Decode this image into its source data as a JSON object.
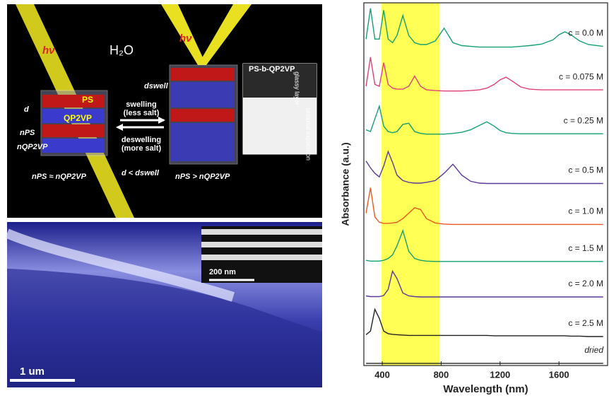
{
  "schematic": {
    "hv_left": "hν",
    "hv_right": "hν",
    "solvent": "H₂O",
    "ps": "PS",
    "qp2vp": "QP2VP",
    "d": "d",
    "n_ps": "nPS",
    "n_qp2vp": "nQP2VP",
    "swelling": "swelling",
    "less_salt": "(less salt)",
    "deswelling": "deswelling",
    "more_salt": "(more salt)",
    "relation_left": "nPS ≈ nQP2VP",
    "relation_mid": "d < dswell",
    "relation_right": "nPS > nQP2VP",
    "d_swell": "dswell",
    "polymer": "PS-b-QP2VP",
    "glassy": "glassy layer",
    "expansion": "uniaxial expansion"
  },
  "micrograph": {
    "inset_scale": "200 nm",
    "scale": "1 um"
  },
  "chart_data": {
    "type": "line",
    "xlabel": "Wavelength (nm)",
    "ylabel": "Absorbance (a.u.)",
    "xlim": [
      275,
      1930
    ],
    "ylim": [
      0,
      10
    ],
    "xticks": [
      400,
      800,
      1200,
      1600
    ],
    "highlight": [
      395,
      790
    ],
    "highlight_color": "#ffff55",
    "x": [
      290,
      320,
      350,
      380,
      410,
      440,
      470,
      500,
      540,
      580,
      620,
      660,
      700,
      760,
      820,
      880,
      940,
      1000,
      1060,
      1110,
      1160,
      1200,
      1240,
      1280,
      1340,
      1400,
      1480,
      1560,
      1600,
      1640,
      1680,
      1740,
      1800,
      1900
    ],
    "series": [
      {
        "name": "c = 0.0 M",
        "color": "#16a070",
        "values": [
          9.0,
          9.85,
          9.0,
          9.0,
          9.8,
          9.0,
          8.9,
          9.1,
          9.65,
          9.1,
          8.9,
          8.85,
          8.85,
          8.95,
          9.3,
          8.9,
          8.82,
          8.8,
          8.78,
          8.78,
          8.78,
          8.78,
          8.78,
          8.78,
          8.8,
          8.82,
          8.86,
          8.98,
          9.12,
          9.2,
          9.12,
          8.95,
          8.85,
          8.8
        ]
      },
      {
        "name": "c = 0.075 M",
        "color": "#e0407a",
        "values": [
          7.7,
          8.5,
          7.75,
          7.7,
          8.35,
          7.75,
          7.65,
          7.62,
          7.62,
          7.7,
          7.98,
          7.7,
          7.6,
          7.58,
          7.57,
          7.57,
          7.57,
          7.58,
          7.6,
          7.65,
          7.75,
          7.88,
          7.95,
          7.85,
          7.68,
          7.62,
          7.6,
          7.6,
          7.6,
          7.6,
          7.6,
          7.6,
          7.6,
          7.6
        ]
      },
      {
        "name": "c = 0.25 M",
        "color": "#16a070",
        "values": [
          6.5,
          6.45,
          6.8,
          7.15,
          6.6,
          6.45,
          6.42,
          6.45,
          6.65,
          6.68,
          6.45,
          6.4,
          6.38,
          6.38,
          6.38,
          6.4,
          6.43,
          6.5,
          6.62,
          6.72,
          6.6,
          6.48,
          6.42,
          6.4,
          6.39,
          6.39,
          6.39,
          6.39,
          6.39,
          6.39,
          6.39,
          6.39,
          6.39,
          6.39
        ]
      },
      {
        "name": "c = 0.5 M",
        "color": "#5a3a9a",
        "values": [
          5.64,
          5.45,
          5.3,
          5.2,
          5.5,
          5.9,
          5.6,
          5.25,
          5.1,
          5.05,
          5.03,
          5.03,
          5.05,
          5.1,
          5.3,
          5.55,
          5.25,
          5.08,
          5.03,
          5.02,
          5.02,
          5.02,
          5.02,
          5.02,
          5.02,
          5.02,
          5.02,
          5.02,
          5.02,
          5.02,
          5.02,
          5.02,
          5.02,
          5.02
        ]
      },
      {
        "name": "c = 1.0 M",
        "color": "#e85a20",
        "values": [
          4.2,
          4.9,
          4.1,
          3.95,
          3.92,
          3.92,
          3.93,
          3.95,
          4.05,
          4.2,
          4.35,
          4.3,
          4.05,
          3.93,
          3.9,
          3.89,
          3.89,
          3.89,
          3.89,
          3.89,
          3.89,
          3.89,
          3.89,
          3.89,
          3.89,
          3.89,
          3.89,
          3.89,
          3.89,
          3.89,
          3.89,
          3.89,
          3.89,
          3.89
        ]
      },
      {
        "name": "c = 1.5 M",
        "color": "#16a070",
        "values": [
          2.9,
          2.88,
          2.88,
          2.88,
          2.9,
          2.95,
          3.05,
          3.3,
          3.72,
          3.15,
          2.95,
          2.9,
          2.88,
          2.87,
          2.87,
          2.87,
          2.87,
          2.87,
          2.87,
          2.87,
          2.87,
          2.87,
          2.87,
          2.87,
          2.87,
          2.87,
          2.87,
          2.87,
          2.87,
          2.87,
          2.87,
          2.87,
          2.87,
          2.87
        ]
      },
      {
        "name": "c = 2.0 M",
        "color": "#5a3a9a",
        "values": [
          1.92,
          1.9,
          1.9,
          1.9,
          1.93,
          2.1,
          2.6,
          2.4,
          2.0,
          1.92,
          1.9,
          1.89,
          1.89,
          1.89,
          1.89,
          1.89,
          1.89,
          1.89,
          1.89,
          1.89,
          1.89,
          1.89,
          1.89,
          1.89,
          1.89,
          1.89,
          1.89,
          1.89,
          1.89,
          1.89,
          1.89,
          1.89,
          1.89,
          1.89
        ]
      },
      {
        "name": "c = 2.5 M",
        "color": "#222222",
        "values": [
          0.85,
          0.95,
          1.55,
          1.3,
          0.95,
          0.88,
          0.86,
          0.85,
          0.84,
          0.83,
          0.83,
          0.83,
          0.83,
          0.83,
          0.83,
          0.83,
          0.83,
          0.83,
          0.83,
          0.83,
          0.82,
          0.82,
          0.82,
          0.82,
          0.82,
          0.82,
          0.82,
          0.82,
          0.82,
          0.82,
          0.81,
          0.81,
          0.8,
          0.8
        ]
      },
      {
        "name": "dried",
        "color": "#222222",
        "values": [
          0.06,
          0.06,
          0.06,
          0.06,
          0.06,
          0.06,
          0.06,
          0.06,
          0.06,
          0.06,
          0.06,
          0.06,
          0.06,
          0.06,
          0.06,
          0.06,
          0.06,
          0.06,
          0.06,
          0.06,
          0.06,
          0.06,
          0.06,
          0.06,
          0.06,
          0.06,
          0.06,
          0.06,
          0.06,
          0.06,
          0.06,
          0.06,
          0.06,
          0.06
        ]
      }
    ]
  }
}
